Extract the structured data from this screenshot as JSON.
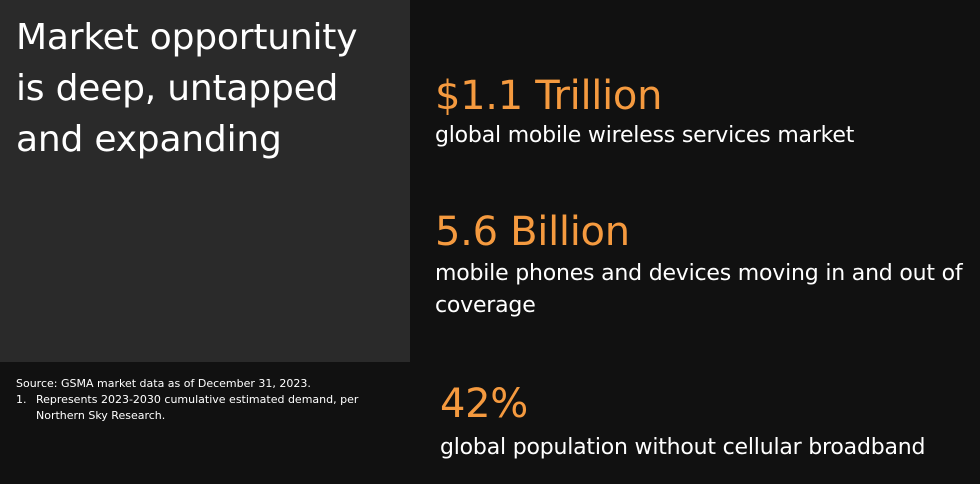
{
  "title": "Market opportunity is deep, untapped and expanding",
  "footnotes": {
    "source": "Source: GSMA market data as of December 31, 2023.",
    "notes": [
      {
        "number": "1.",
        "text": "Represents 2023-2030 cumulative estimated demand, per Northern Sky Research."
      }
    ]
  },
  "stats": [
    {
      "value": "$1.1 Trillion",
      "description": "global mobile wireless services market"
    },
    {
      "value": "5.6 Billion",
      "description": "mobile phones and devices moving in and out of coverage"
    },
    {
      "value": "42%",
      "description": "global population without cellular broadband"
    }
  ],
  "colors": {
    "accent": "#f59a3f",
    "background": "#111111",
    "panel": "#2a2a2a",
    "text": "#ffffff"
  }
}
